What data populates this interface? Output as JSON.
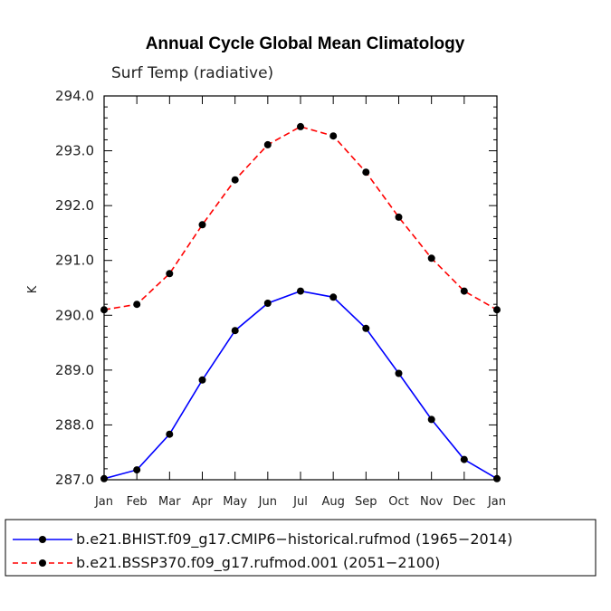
{
  "chart_data": {
    "type": "line",
    "title": "Annual Cycle Global Mean Climatology",
    "subtitle": "Surf Temp (radiative)",
    "xlabel": "",
    "ylabel": "K",
    "categories": [
      "Jan",
      "Feb",
      "Mar",
      "Apr",
      "May",
      "Jun",
      "Jul",
      "Aug",
      "Sep",
      "Oct",
      "Nov",
      "Dec",
      "Jan"
    ],
    "ylim": [
      287.0,
      294.0
    ],
    "yticks": [
      "287.0",
      "288.0",
      "289.0",
      "290.0",
      "291.0",
      "292.0",
      "293.0",
      "294.0"
    ],
    "grid": false,
    "legend_position": "bottom",
    "series": [
      {
        "name": "b.e21.BHIST.f09_g17.CMIP6−historical.rufmod (1965−2014)",
        "color": "#0000ff",
        "line_style": "solid",
        "values": [
          287.02,
          287.18,
          287.83,
          288.82,
          289.72,
          290.22,
          290.44,
          290.33,
          289.76,
          288.94,
          288.1,
          287.37,
          287.02
        ]
      },
      {
        "name": "b.e21.BSSP370.f09_g17.rufmod.001 (2051−2100)",
        "color": "#ff0000",
        "line_style": "dashed",
        "values": [
          290.1,
          290.2,
          290.76,
          291.65,
          292.47,
          293.11,
          293.44,
          293.27,
          292.61,
          291.79,
          291.04,
          290.44,
          290.1
        ]
      }
    ]
  }
}
